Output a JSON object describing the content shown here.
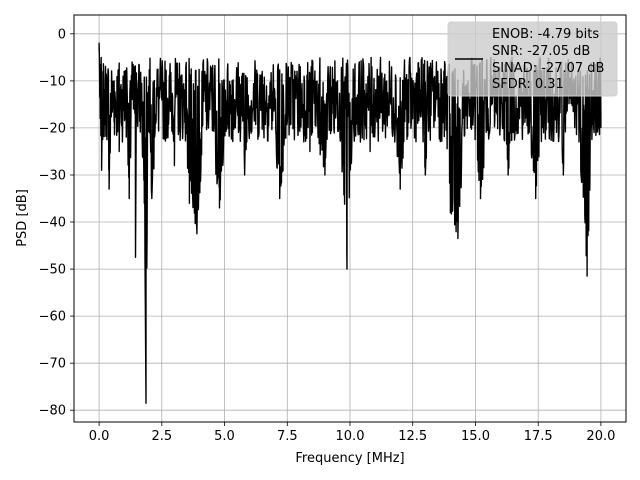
{
  "chart_data": {
    "type": "line",
    "title": "",
    "xlabel": "Frequency [MHz]",
    "ylabel": "PSD [dB]",
    "xlim": [
      -1.0,
      21.0
    ],
    "ylim": [
      -82.5,
      4.0
    ],
    "xticks": [
      0.0,
      2.5,
      5.0,
      7.5,
      10.0,
      12.5,
      15.0,
      17.5,
      20.0
    ],
    "xtick_labels": [
      "0.0",
      "2.5",
      "5.0",
      "7.5",
      "10.0",
      "12.5",
      "15.0",
      "17.5",
      "20.0"
    ],
    "yticks": [
      0,
      -10,
      -20,
      -30,
      -40,
      -50,
      -60,
      -70,
      -80
    ],
    "ytick_labels": [
      "0",
      "−10",
      "−20",
      "−30",
      "−40",
      "−50",
      "−60",
      "−70",
      "−80"
    ],
    "grid": true,
    "line_color": "#000000",
    "legend": {
      "placement": "upper-right",
      "entries": [
        "ENOB: -4.79 bits",
        "SNR: -27.05 dB",
        "SINAD: -27.07 dB",
        "SFDR: 0.31"
      ]
    },
    "series": [
      {
        "description": "noisy power spectral density; approximate readout of envelope and notable dips",
        "x": [
          0.0,
          0.05,
          0.1,
          0.15,
          0.25,
          0.4,
          0.6,
          0.8,
          1.0,
          1.2,
          1.4,
          1.45,
          1.5,
          1.8,
          1.87,
          1.95,
          2.1,
          2.5,
          3.0,
          3.3,
          3.6,
          3.9,
          4.3,
          4.8,
          5.3,
          5.8,
          6.5,
          7.2,
          7.8,
          8.4,
          9.0,
          9.5,
          9.88,
          10.2,
          10.8,
          11.4,
          12.0,
          12.6,
          13.0,
          13.5,
          14.0,
          14.3,
          14.7,
          15.2,
          15.7,
          16.3,
          16.8,
          17.4,
          17.9,
          18.5,
          19.0,
          19.45,
          19.7,
          20.0
        ],
        "y": [
          -2,
          -18,
          -29,
          -8,
          -12,
          -33,
          -10,
          -25,
          -8,
          -35,
          -15,
          -47.5,
          -10,
          -36,
          -78.5,
          -15,
          -35,
          -8,
          -28,
          -10,
          -36,
          -42.5,
          -12,
          -37,
          -10,
          -30,
          -8,
          -35,
          -12,
          -25,
          -30,
          -10,
          -50,
          -14,
          -25,
          -10,
          -33,
          -12,
          -30,
          -8,
          -38,
          -43.5,
          -10,
          -35,
          -12,
          -30,
          -14,
          -35,
          -10,
          -30,
          -12,
          -51.5,
          -15,
          -20
        ]
      }
    ]
  }
}
